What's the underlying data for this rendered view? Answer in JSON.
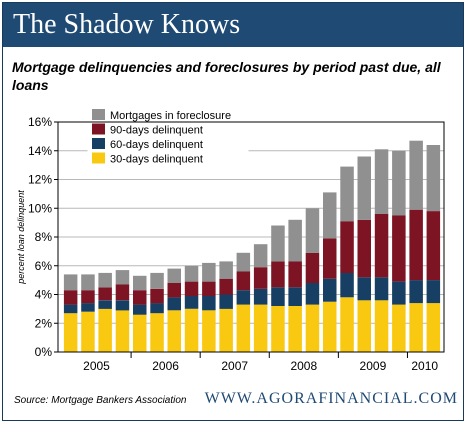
{
  "header": {
    "title": "The Shadow Knows"
  },
  "chart_data": {
    "type": "bar",
    "stacked": true,
    "title": "Mortgage delinquencies and foreclosures by period past due, all loans",
    "ylabel": "percent loan delinquent",
    "xlabel": "",
    "ylim": [
      0,
      16
    ],
    "yticks": [
      0,
      2,
      4,
      6,
      8,
      10,
      12,
      14,
      16
    ],
    "ytick_labels": [
      "0%",
      "2%",
      "4%",
      "6%",
      "8%",
      "10%",
      "12%",
      "14%",
      "16%"
    ],
    "year_labels": [
      "2005",
      "2006",
      "2007",
      "2008",
      "2009",
      "2010"
    ],
    "categories": [
      "2005 Q1",
      "2005 Q2",
      "2005 Q3",
      "2005 Q4",
      "2006 Q1",
      "2006 Q2",
      "2006 Q3",
      "2006 Q4",
      "2007 Q1",
      "2007 Q2",
      "2007 Q3",
      "2007 Q4",
      "2008 Q1",
      "2008 Q2",
      "2008 Q3",
      "2008 Q4",
      "2009 Q1",
      "2009 Q2",
      "2009 Q3",
      "2009 Q4",
      "2010 Q1",
      "2010 Q2"
    ],
    "legend_position": "top-left",
    "grid": true,
    "series": [
      {
        "name": "30-days delinquent",
        "color": "#f9c810",
        "values": [
          2.7,
          2.8,
          3.0,
          2.9,
          2.6,
          2.7,
          2.9,
          3.0,
          2.9,
          3.0,
          3.3,
          3.3,
          3.2,
          3.2,
          3.3,
          3.5,
          3.8,
          3.6,
          3.6,
          3.3,
          3.4,
          3.4
        ]
      },
      {
        "name": "60-days delinquent",
        "color": "#173e63",
        "values": [
          0.6,
          0.6,
          0.6,
          0.7,
          0.7,
          0.7,
          0.9,
          0.9,
          1.0,
          1.0,
          1.0,
          1.1,
          1.3,
          1.3,
          1.5,
          1.6,
          1.7,
          1.6,
          1.6,
          1.6,
          1.6,
          1.6
        ]
      },
      {
        "name": "90-days delinquent",
        "color": "#7d1424",
        "values": [
          1.0,
          0.9,
          0.9,
          1.1,
          1.0,
          1.0,
          1.0,
          1.0,
          1.0,
          1.1,
          1.3,
          1.5,
          1.8,
          1.8,
          2.1,
          2.8,
          3.6,
          4.0,
          4.4,
          4.6,
          4.9,
          4.8
        ]
      },
      {
        "name": "Mortgages in foreclosure",
        "color": "#909090",
        "values": [
          1.1,
          1.1,
          1.0,
          1.0,
          1.0,
          1.1,
          1.0,
          1.1,
          1.3,
          1.2,
          1.3,
          1.6,
          2.5,
          2.9,
          3.1,
          3.2,
          3.8,
          4.4,
          4.5,
          4.5,
          4.8,
          4.6
        ]
      }
    ],
    "legend_order": [
      "Mortgages in foreclosure",
      "90-days delinquent",
      "60-days delinquent",
      "30-days delinquent"
    ]
  },
  "footer": {
    "source": "Source: Mortgage Bankers Association",
    "site": "WWW.AGORAFINANCIAL.COM"
  }
}
